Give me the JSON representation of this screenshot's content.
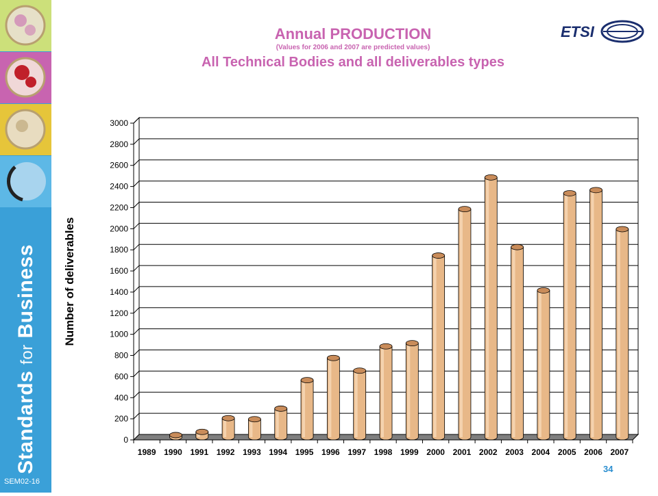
{
  "slide": {
    "title_prefix": "Annual ",
    "title_emph": "PRODUCTION",
    "note": "(Values for 2006 and 2007 are predicted values)",
    "subtitle": "All Technical Bodies and all deliverables types",
    "page_number": "34",
    "slide_code": "SEM02-16",
    "tagline_part1": "Standards",
    "tagline_for": "for",
    "tagline_part2": "Business",
    "logo_text": "ETSI",
    "title_color": "#c863b0",
    "sidebar_color": "#3aa0d8",
    "tile_colors": [
      "#cce07a",
      "#c864b0",
      "#e6c53a",
      "#5db8e6"
    ]
  },
  "chart_data": {
    "type": "bar",
    "ylabel": "Number of deliverables",
    "categories": [
      "1989",
      "1990",
      "1991",
      "1992",
      "1993",
      "1994",
      "1995",
      "1996",
      "1997",
      "1998",
      "1999",
      "2000",
      "2001",
      "2002",
      "2003",
      "2004",
      "2005",
      "2006",
      "2007"
    ],
    "values": [
      0,
      20,
      50,
      180,
      170,
      270,
      540,
      750,
      630,
      860,
      890,
      1720,
      2160,
      2460,
      1800,
      1390,
      2310,
      2340,
      1970
    ],
    "ylim": [
      0,
      3000
    ],
    "yticks": [
      "0",
      "200",
      "400",
      "600",
      "800",
      "1000",
      "1200",
      "1400",
      "1600",
      "1800",
      "2000",
      "2200",
      "2400",
      "2600",
      "2800",
      "3000"
    ],
    "grid": true,
    "bar_color": "#e8b888",
    "floor_color": "#7f7f7f"
  }
}
